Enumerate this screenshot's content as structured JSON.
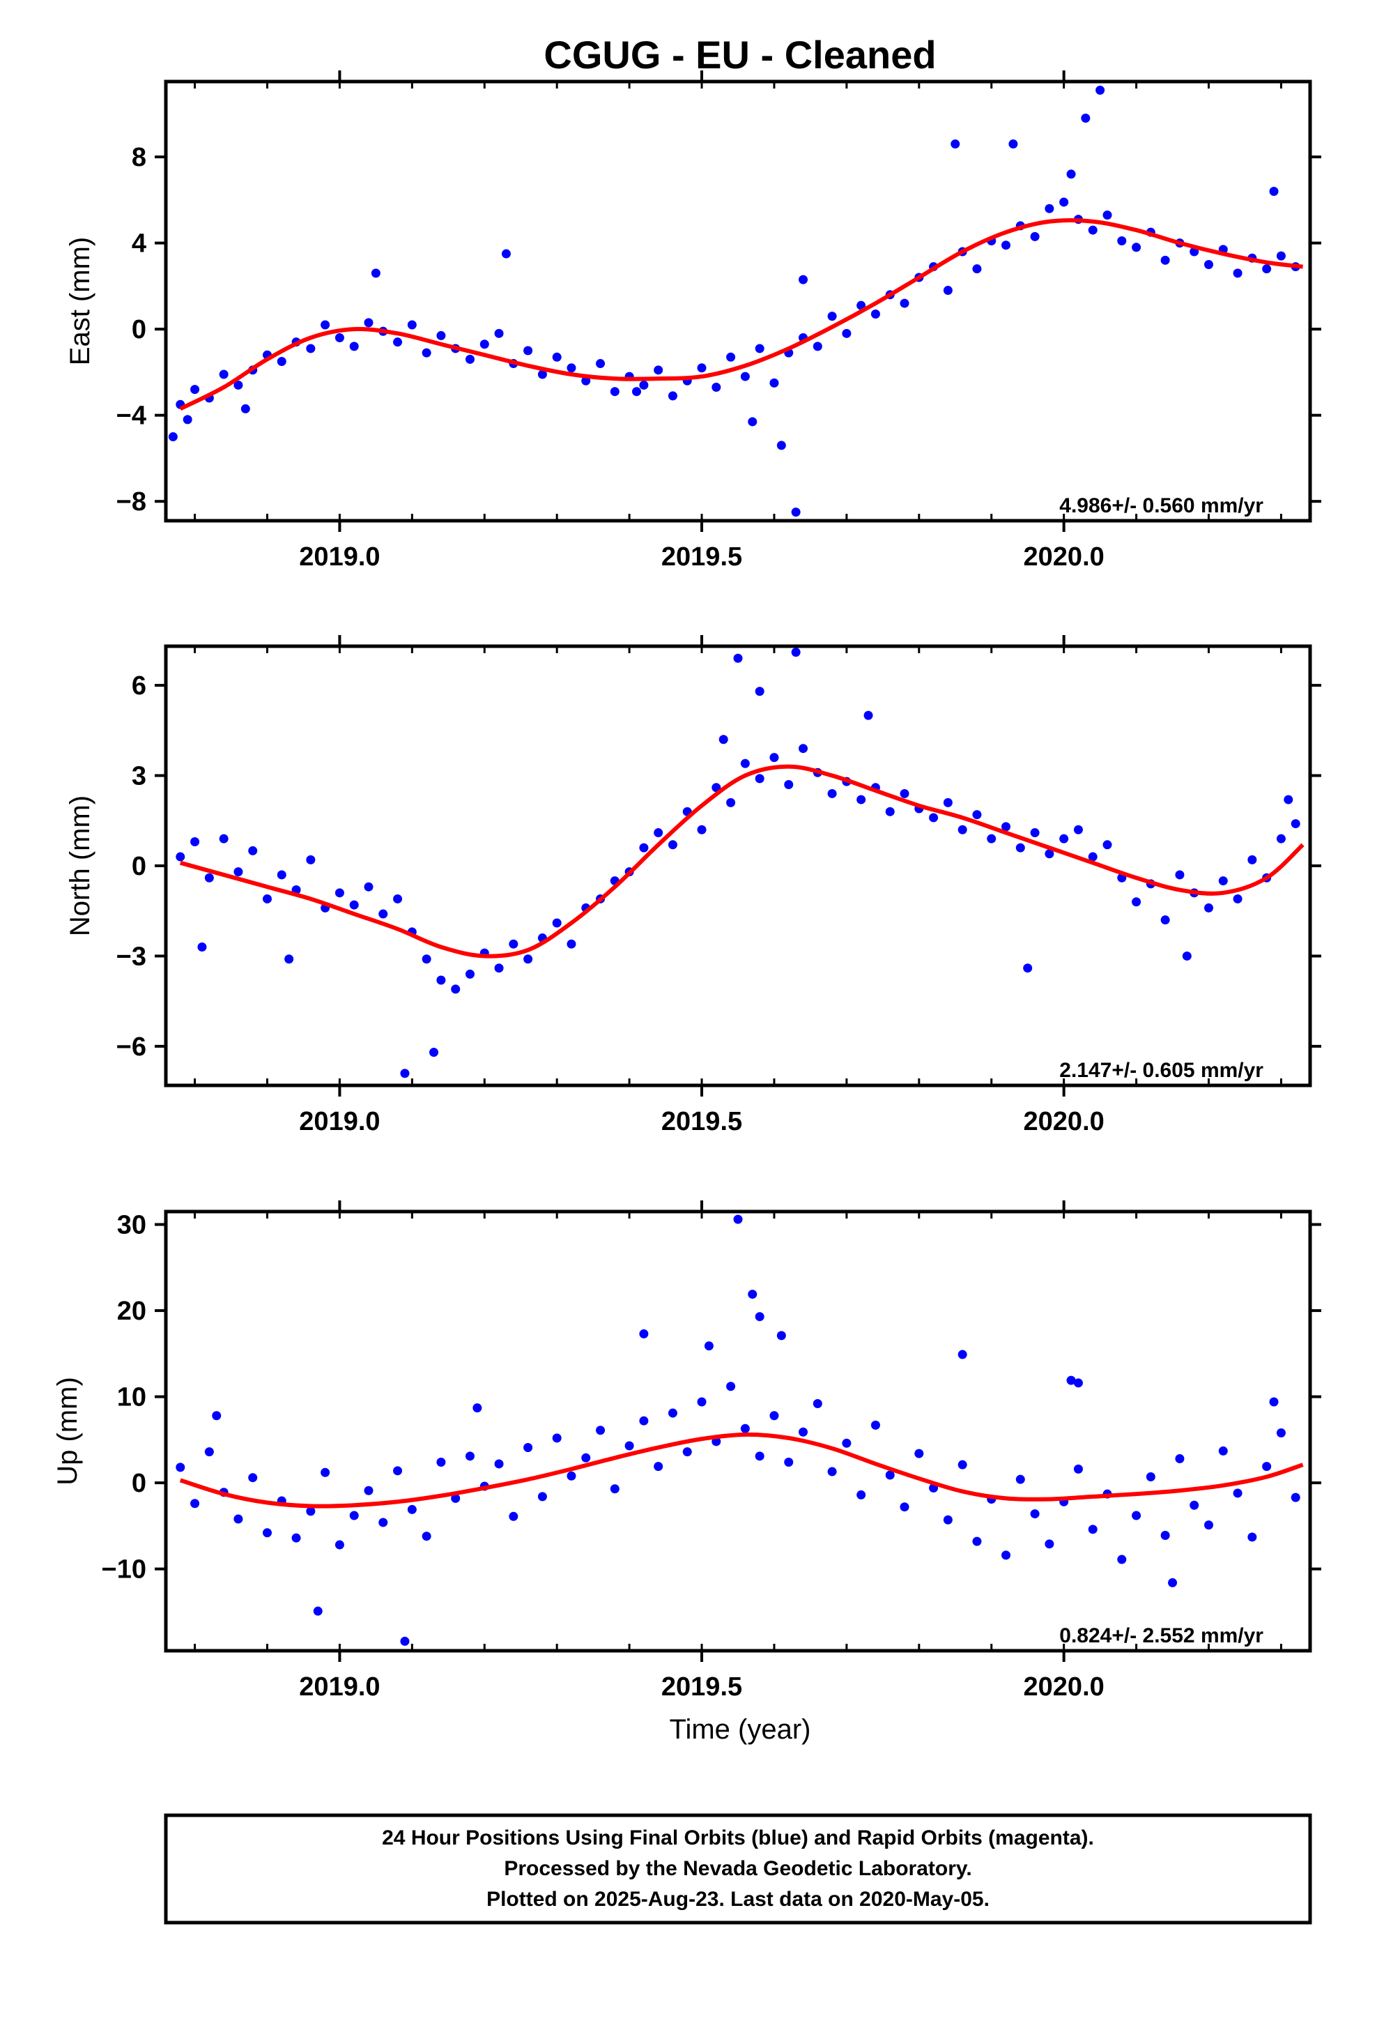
{
  "figure": {
    "title": "CGUG  - EU - Cleaned",
    "xlabel": "Time (year)",
    "footer_lines": [
      "24 Hour Positions Using Final Orbits (blue) and Rapid Orbits (magenta).",
      "Processed by the Nevada Geodetic Laboratory.",
      "Plotted on 2025-Aug-23. Last data on 2020-May-05."
    ],
    "colors": {
      "points": "#0000ff",
      "fit": "#ff0000",
      "frame": "#000000"
    }
  },
  "chart_data": [
    {
      "type": "scatter",
      "panel": "east",
      "ylabel": "East (mm)",
      "rate_label": "4.986+/- 0.560 mm/yr",
      "xlim": [
        2018.76,
        2020.34
      ],
      "ylim": [
        -8.9,
        11.5
      ],
      "x_ticks": [
        2019.0,
        2019.5,
        2020.0
      ],
      "x_tick_labels": [
        "2019.0",
        "2019.5",
        "2020.0"
      ],
      "y_ticks": [
        -8,
        -4,
        0,
        4,
        8
      ],
      "y_tick_labels": [
        "−8",
        "−4",
        "0",
        "4",
        "8"
      ],
      "grid": false,
      "series": [
        {
          "kind": "points",
          "x": [
            2018.78,
            2018.8,
            2018.82,
            2018.84,
            2018.86,
            2018.88,
            2018.9,
            2018.92,
            2018.94,
            2018.96,
            2018.98,
            2019.0,
            2019.02,
            2019.04,
            2019.06,
            2019.08,
            2019.1,
            2019.12,
            2019.14,
            2019.16,
            2019.18,
            2019.2,
            2019.22,
            2019.24,
            2019.26,
            2019.28,
            2019.3,
            2019.32,
            2019.34,
            2019.36,
            2019.38,
            2019.4,
            2019.42,
            2019.44,
            2019.46,
            2019.48,
            2019.5,
            2019.52,
            2019.54,
            2019.56,
            2019.58,
            2019.6,
            2019.62,
            2019.64,
            2019.66,
            2019.68,
            2019.7,
            2019.72,
            2019.74,
            2019.76,
            2019.78,
            2019.8,
            2019.82,
            2019.84,
            2019.86,
            2019.88,
            2019.9,
            2019.92,
            2019.94,
            2019.96,
            2019.98,
            2020.0,
            2020.02,
            2020.04,
            2020.06,
            2020.08,
            2020.1,
            2020.12,
            2020.14,
            2020.16,
            2020.18,
            2020.2,
            2020.22,
            2020.24,
            2020.26,
            2020.28,
            2020.3,
            2020.32,
            2018.79,
            2018.87,
            2019.05,
            2019.23,
            2019.41,
            2019.57,
            2019.63,
            2019.85,
            2019.93,
            2020.01,
            2020.03,
            2020.05,
            2019.61,
            2018.77,
            2020.29,
            2019.64
          ],
          "y": [
            -3.5,
            -2.8,
            -3.2,
            -2.1,
            -2.6,
            -1.9,
            -1.2,
            -1.5,
            -0.6,
            -0.9,
            0.2,
            -0.4,
            -0.8,
            0.3,
            -0.1,
            -0.6,
            0.2,
            -1.1,
            -0.3,
            -0.9,
            -1.4,
            -0.7,
            -0.2,
            -1.6,
            -1.0,
            -2.1,
            -1.3,
            -1.8,
            -2.4,
            -1.6,
            -2.9,
            -2.2,
            -2.6,
            -1.9,
            -3.1,
            -2.4,
            -1.8,
            -2.7,
            -1.3,
            -2.2,
            -0.9,
            -2.5,
            -1.1,
            -0.4,
            -0.8,
            0.6,
            -0.2,
            1.1,
            0.7,
            1.6,
            1.2,
            2.4,
            2.9,
            1.8,
            3.6,
            2.8,
            4.1,
            3.9,
            4.8,
            4.3,
            5.6,
            5.9,
            5.1,
            4.6,
            5.3,
            4.1,
            3.8,
            4.5,
            3.2,
            4.0,
            3.6,
            3.0,
            3.7,
            2.6,
            3.3,
            2.8,
            3.4,
            2.9,
            -4.2,
            -3.7,
            2.6,
            3.5,
            -2.9,
            -4.3,
            -8.5,
            8.6,
            8.6,
            7.2,
            9.8,
            11.1,
            -5.4,
            -5.0,
            6.4,
            2.3
          ]
        },
        {
          "kind": "fit",
          "x": [
            2018.78,
            2018.84,
            2018.9,
            2018.96,
            2019.02,
            2019.08,
            2019.14,
            2019.2,
            2019.26,
            2019.32,
            2019.38,
            2019.44,
            2019.5,
            2019.56,
            2019.62,
            2019.68,
            2019.74,
            2019.8,
            2019.86,
            2019.92,
            2019.98,
            2020.04,
            2020.1,
            2020.16,
            2020.22,
            2020.28,
            2020.33
          ],
          "y": [
            -3.7,
            -2.7,
            -1.4,
            -0.4,
            0.0,
            -0.2,
            -0.7,
            -1.2,
            -1.7,
            -2.1,
            -2.3,
            -2.3,
            -2.2,
            -1.7,
            -0.9,
            0.1,
            1.2,
            2.4,
            3.6,
            4.5,
            5.0,
            5.0,
            4.6,
            4.0,
            3.5,
            3.1,
            2.9
          ]
        }
      ]
    },
    {
      "type": "scatter",
      "panel": "north",
      "ylabel": "North (mm)",
      "rate_label": "2.147+/- 0.605 mm/yr",
      "xlim": [
        2018.76,
        2020.34
      ],
      "ylim": [
        -7.3,
        7.3
      ],
      "x_ticks": [
        2019.0,
        2019.5,
        2020.0
      ],
      "x_tick_labels": [
        "2019.0",
        "2019.5",
        "2020.0"
      ],
      "y_ticks": [
        -6,
        -3,
        0,
        3,
        6
      ],
      "y_tick_labels": [
        "−6",
        "−3",
        "0",
        "3",
        "6"
      ],
      "grid": false,
      "series": [
        {
          "kind": "points",
          "x": [
            2018.78,
            2018.8,
            2018.82,
            2018.84,
            2018.86,
            2018.88,
            2018.9,
            2018.92,
            2018.94,
            2018.96,
            2018.98,
            2019.0,
            2019.02,
            2019.04,
            2019.06,
            2019.08,
            2019.1,
            2019.12,
            2019.14,
            2019.16,
            2019.18,
            2019.2,
            2019.22,
            2019.24,
            2019.26,
            2019.28,
            2019.3,
            2019.32,
            2019.34,
            2019.36,
            2019.38,
            2019.4,
            2019.42,
            2019.44,
            2019.46,
            2019.48,
            2019.5,
            2019.52,
            2019.54,
            2019.56,
            2019.58,
            2019.6,
            2019.62,
            2019.64,
            2019.66,
            2019.68,
            2019.7,
            2019.72,
            2019.74,
            2019.76,
            2019.78,
            2019.8,
            2019.82,
            2019.84,
            2019.86,
            2019.88,
            2019.9,
            2019.92,
            2019.94,
            2019.96,
            2019.98,
            2020.0,
            2020.02,
            2020.04,
            2020.06,
            2020.08,
            2020.1,
            2020.12,
            2020.14,
            2020.16,
            2020.18,
            2020.2,
            2020.22,
            2020.24,
            2020.26,
            2020.28,
            2020.3,
            2020.32,
            2018.81,
            2018.93,
            2019.09,
            2019.13,
            2019.53,
            2019.55,
            2019.58,
            2019.63,
            2019.73,
            2019.95,
            2020.17,
            2020.31
          ],
          "y": [
            0.3,
            0.8,
            -0.4,
            0.9,
            -0.2,
            0.5,
            -1.1,
            -0.3,
            -0.8,
            0.2,
            -1.4,
            -0.9,
            -1.3,
            -0.7,
            -1.6,
            -1.1,
            -2.2,
            -3.1,
            -3.8,
            -4.1,
            -3.6,
            -2.9,
            -3.4,
            -2.6,
            -3.1,
            -2.4,
            -1.9,
            -2.6,
            -1.4,
            -1.1,
            -0.5,
            -0.2,
            0.6,
            1.1,
            0.7,
            1.8,
            1.2,
            2.6,
            2.1,
            3.4,
            2.9,
            3.6,
            2.7,
            3.9,
            3.1,
            2.4,
            2.8,
            2.2,
            2.6,
            1.8,
            2.4,
            1.9,
            1.6,
            2.1,
            1.2,
            1.7,
            0.9,
            1.3,
            0.6,
            1.1,
            0.4,
            0.9,
            1.2,
            0.3,
            0.7,
            -0.4,
            -1.2,
            -0.6,
            -1.8,
            -0.3,
            -0.9,
            -1.4,
            -0.5,
            -1.1,
            0.2,
            -0.4,
            0.9,
            1.4,
            -2.7,
            -3.1,
            -6.9,
            -6.2,
            4.2,
            6.9,
            5.8,
            7.1,
            5.0,
            -3.4,
            -3.0,
            2.2
          ],
          "colors_note": "blue"
        },
        {
          "kind": "fit",
          "x": [
            2018.78,
            2018.84,
            2018.9,
            2018.96,
            2019.02,
            2019.08,
            2019.14,
            2019.2,
            2019.26,
            2019.32,
            2019.38,
            2019.44,
            2019.5,
            2019.56,
            2019.62,
            2019.68,
            2019.74,
            2019.8,
            2019.86,
            2019.92,
            2019.98,
            2020.04,
            2020.1,
            2020.16,
            2020.22,
            2020.28,
            2020.33
          ],
          "y": [
            0.1,
            -0.3,
            -0.7,
            -1.1,
            -1.6,
            -2.1,
            -2.7,
            -3.0,
            -2.8,
            -1.9,
            -0.7,
            0.7,
            2.0,
            3.0,
            3.3,
            3.0,
            2.5,
            2.0,
            1.6,
            1.1,
            0.6,
            0.1,
            -0.4,
            -0.8,
            -0.9,
            -0.4,
            0.7
          ]
        }
      ]
    },
    {
      "type": "scatter",
      "panel": "up",
      "ylabel": "Up (mm)",
      "rate_label": "0.824+/- 2.552 mm/yr",
      "xlim": [
        2018.76,
        2020.34
      ],
      "ylim": [
        -19.5,
        31.5
      ],
      "x_ticks": [
        2019.0,
        2019.5,
        2020.0
      ],
      "x_tick_labels": [
        "2019.0",
        "2019.5",
        "2020.0"
      ],
      "y_ticks": [
        -10,
        0,
        10,
        20,
        30
      ],
      "y_tick_labels": [
        "−10",
        "0",
        "10",
        "20",
        "30"
      ],
      "grid": false,
      "series": [
        {
          "kind": "points",
          "x": [
            2018.78,
            2018.8,
            2018.82,
            2018.84,
            2018.86,
            2018.88,
            2018.9,
            2018.92,
            2018.94,
            2018.96,
            2018.98,
            2019.0,
            2019.02,
            2019.04,
            2019.06,
            2019.08,
            2019.1,
            2019.12,
            2019.14,
            2019.16,
            2019.18,
            2019.2,
            2019.22,
            2019.24,
            2019.26,
            2019.28,
            2019.3,
            2019.32,
            2019.34,
            2019.36,
            2019.38,
            2019.4,
            2019.42,
            2019.44,
            2019.46,
            2019.48,
            2019.5,
            2019.52,
            2019.54,
            2019.56,
            2019.58,
            2019.6,
            2019.62,
            2019.64,
            2019.66,
            2019.68,
            2019.7,
            2019.72,
            2019.74,
            2019.76,
            2019.78,
            2019.8,
            2019.82,
            2019.84,
            2019.86,
            2019.88,
            2019.9,
            2019.92,
            2019.94,
            2019.96,
            2019.98,
            2020.0,
            2020.02,
            2020.04,
            2020.06,
            2020.08,
            2020.1,
            2020.12,
            2020.14,
            2020.16,
            2020.18,
            2020.2,
            2020.22,
            2020.24,
            2020.26,
            2020.28,
            2020.3,
            2020.32,
            2018.83,
            2018.97,
            2019.09,
            2019.19,
            2019.42,
            2019.51,
            2019.55,
            2019.57,
            2019.58,
            2019.61,
            2019.86,
            2020.01,
            2020.02,
            2020.15,
            2020.29
          ],
          "y": [
            1.8,
            -2.4,
            3.6,
            -1.1,
            -4.2,
            0.6,
            -5.8,
            -2.1,
            -6.4,
            -3.3,
            1.2,
            -7.2,
            -3.8,
            -0.9,
            -4.6,
            1.4,
            -3.1,
            -6.2,
            2.4,
            -1.8,
            3.1,
            -0.4,
            2.2,
            -3.9,
            4.1,
            -1.6,
            5.2,
            0.8,
            2.9,
            6.1,
            -0.7,
            4.3,
            7.2,
            1.9,
            8.1,
            3.6,
            9.4,
            4.8,
            11.2,
            6.3,
            3.1,
            7.8,
            2.4,
            5.9,
            9.2,
            1.3,
            4.6,
            -1.4,
            6.7,
            0.9,
            -2.8,
            3.4,
            -0.6,
            -4.3,
            2.1,
            -6.8,
            -1.9,
            -8.4,
            0.4,
            -3.6,
            -7.1,
            -2.2,
            1.6,
            -5.4,
            -1.3,
            -8.9,
            -3.8,
            0.7,
            -6.1,
            2.8,
            -2.6,
            -4.9,
            3.7,
            -1.2,
            -6.3,
            1.9,
            5.8,
            -1.7,
            7.8,
            -14.9,
            -18.4,
            8.7,
            17.3,
            15.9,
            30.6,
            21.9,
            19.3,
            17.1,
            14.9,
            11.9,
            11.6,
            -11.6,
            9.4
          ]
        },
        {
          "kind": "fit",
          "x": [
            2018.78,
            2018.84,
            2018.9,
            2018.96,
            2019.02,
            2019.08,
            2019.14,
            2019.2,
            2019.26,
            2019.32,
            2019.38,
            2019.44,
            2019.5,
            2019.56,
            2019.62,
            2019.68,
            2019.74,
            2019.8,
            2019.86,
            2019.92,
            2019.98,
            2020.04,
            2020.1,
            2020.16,
            2020.22,
            2020.28,
            2020.33
          ],
          "y": [
            0.3,
            -1.3,
            -2.3,
            -2.7,
            -2.6,
            -2.2,
            -1.5,
            -0.6,
            0.4,
            1.6,
            2.9,
            4.1,
            5.1,
            5.6,
            5.2,
            4.0,
            2.2,
            0.5,
            -1.0,
            -1.8,
            -1.9,
            -1.6,
            -1.3,
            -0.9,
            -0.3,
            0.7,
            2.1
          ]
        }
      ]
    }
  ]
}
